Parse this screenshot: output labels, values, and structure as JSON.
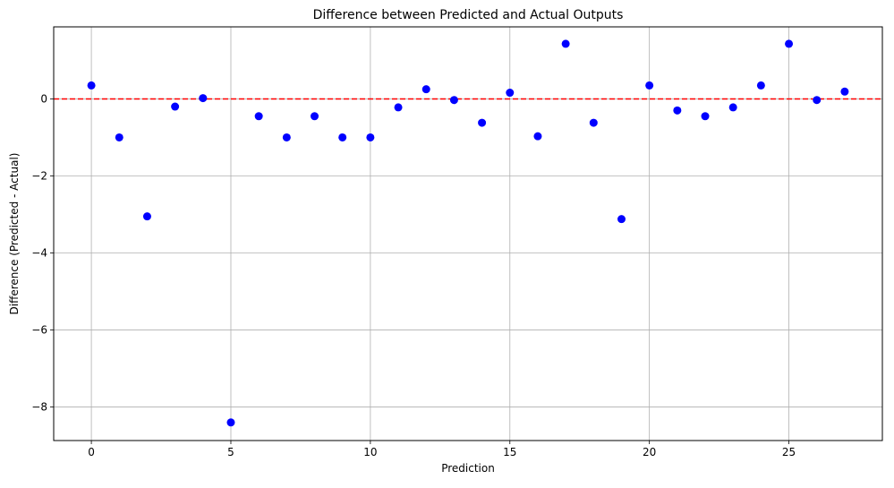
{
  "chart_data": {
    "type": "scatter",
    "title": "Difference between Predicted and Actual Outputs",
    "xlabel": "Prediction",
    "ylabel": "Difference (Predicted - Actual)",
    "xlim": [
      -1.35,
      28.35
    ],
    "ylim": [
      -8.87,
      1.87
    ],
    "xticks": [
      0,
      5,
      10,
      15,
      20,
      25
    ],
    "yticks": [
      -8,
      -6,
      -4,
      -2,
      0
    ],
    "grid": true,
    "point_color": "#0000ff",
    "reference_line": {
      "y": 0,
      "color": "#ff0000",
      "style": "dashed"
    },
    "x": [
      0,
      1,
      2,
      3,
      4,
      5,
      6,
      7,
      8,
      9,
      10,
      11,
      12,
      13,
      14,
      15,
      16,
      17,
      18,
      19,
      20,
      21,
      22,
      23,
      24,
      25,
      26,
      27
    ],
    "y": [
      0.35,
      -1.0,
      -3.05,
      -0.2,
      0.02,
      -8.4,
      -0.45,
      -1.0,
      -0.45,
      -1.0,
      -1.0,
      -0.22,
      0.25,
      -0.03,
      -0.62,
      0.16,
      -0.97,
      1.43,
      -0.62,
      -3.12,
      0.35,
      -0.3,
      -0.45,
      -0.22,
      0.35,
      1.43,
      -0.03,
      0.19
    ]
  }
}
